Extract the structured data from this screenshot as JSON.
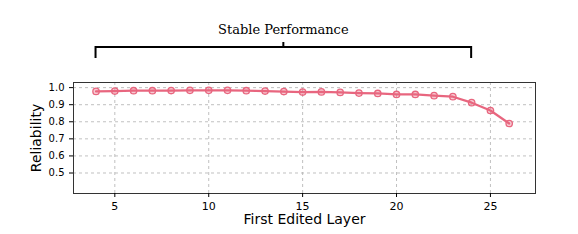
{
  "chart_data": {
    "type": "line",
    "xlabel": "First Edited Layer",
    "ylabel": "Reliability",
    "x": [
      4,
      5,
      6,
      7,
      8,
      9,
      10,
      11,
      12,
      13,
      14,
      15,
      16,
      17,
      18,
      19,
      20,
      21,
      22,
      23,
      24,
      25,
      26
    ],
    "values": [
      0.978,
      0.98,
      0.982,
      0.982,
      0.983,
      0.984,
      0.984,
      0.984,
      0.982,
      0.98,
      0.977,
      0.974,
      0.975,
      0.972,
      0.968,
      0.966,
      0.96,
      0.96,
      0.953,
      0.947,
      0.912,
      0.866,
      0.79
    ],
    "color": "#e8667f",
    "marker": "circle",
    "xlim": [
      2.8,
      27.4
    ],
    "xticks": [
      5,
      10,
      15,
      20,
      25
    ],
    "ylim": [
      0.38,
      1.03
    ],
    "yticks": [
      0.5,
      0.6,
      0.7,
      0.8,
      0.9,
      {
        "value": 1.0,
        "label": "1.0"
      }
    ],
    "grid": true,
    "annotations": [
      {
        "text": "Stable Performance",
        "x": [
          4,
          24
        ]
      }
    ]
  }
}
